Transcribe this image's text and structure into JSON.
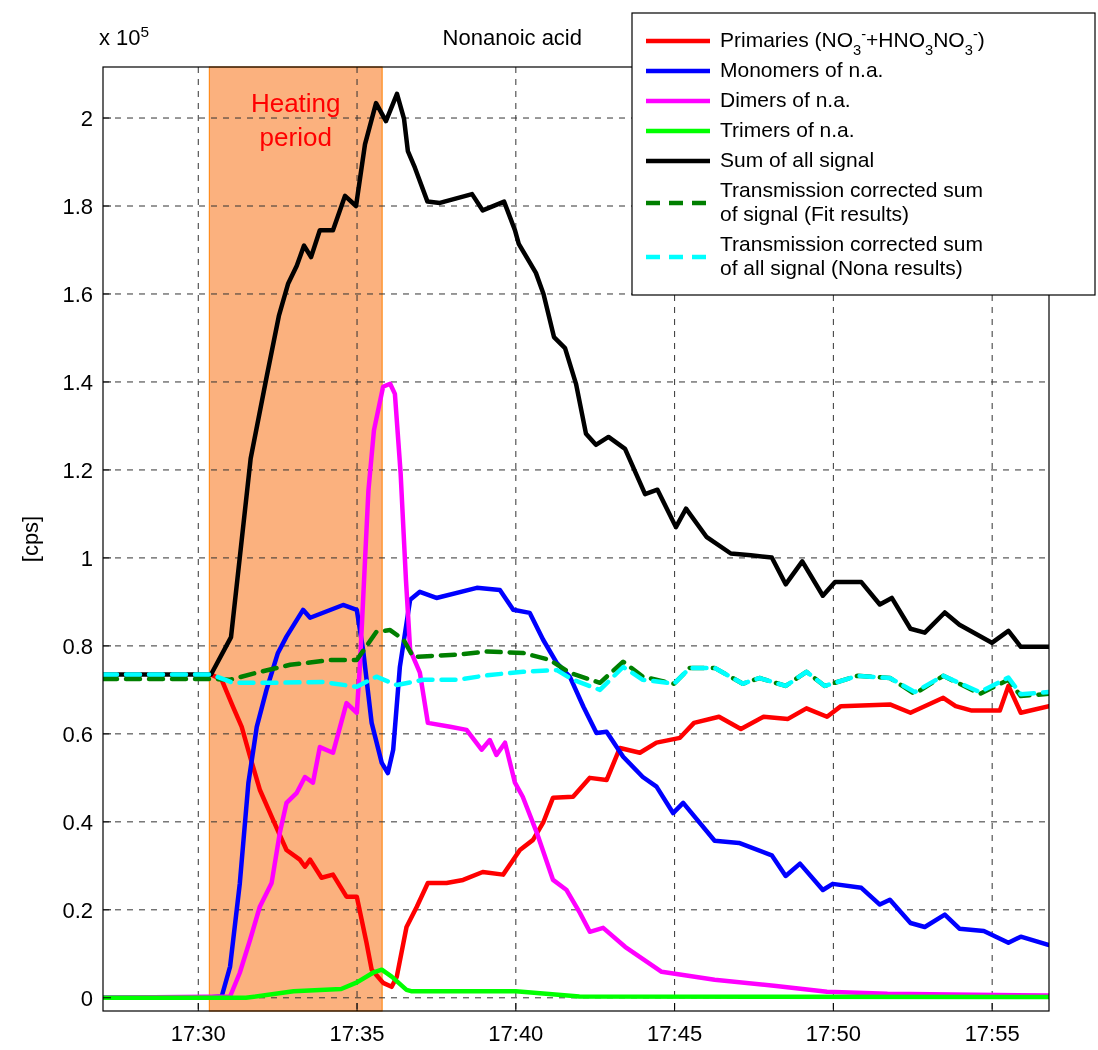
{
  "chart_data": {
    "type": "line",
    "title": "Nonanoic acid",
    "ylabel": "[cps]",
    "annotations": [
      "x 10$^{5}$"
    ],
    "xlim": [
      17.45,
      17.9465
    ],
    "ylim": [
      -0.03,
      2.116
    ],
    "xticks": [
      {
        "value": 17.5,
        "label": "17:30"
      },
      {
        "value": 17.58333,
        "label": "17:35"
      },
      {
        "value": 17.66667,
        "label": "17:40"
      },
      {
        "value": 17.75,
        "label": "17:45"
      },
      {
        "value": 17.83333,
        "label": "17:50"
      },
      {
        "value": 17.91667,
        "label": "17:55"
      }
    ],
    "yticks": [
      0,
      0.2,
      0.4,
      0.6,
      0.8,
      1,
      1.2,
      1.4,
      1.6,
      1.8,
      2
    ],
    "grid": true,
    "legend": "top right",
    "bands": [
      {
        "axis": "x",
        "from": 17.5058,
        "to": 17.5965,
        "label": "Heating period",
        "color": "#fbb17e"
      }
    ],
    "series": [
      {
        "name": "Primaries (NO$_{3}$$^{-}$+HNO$_{3}$NO$_{3}$$^{-}$)",
        "color": "#ff0000",
        "line_style": "solid",
        "x": [
          17.5067,
          17.5123,
          17.5183,
          17.5228,
          17.5272,
          17.5323,
          17.5392,
          17.5463,
          17.5533,
          17.556,
          17.5587,
          17.5647,
          17.5707,
          17.5778,
          17.5832,
          17.5883,
          17.591,
          17.597,
          17.6015,
          17.6042,
          17.6093,
          17.6147,
          17.6205,
          17.6303,
          17.639,
          17.6493,
          17.66,
          17.6688,
          17.6757,
          17.681,
          17.6862,
          17.6967,
          17.7055,
          17.7143,
          17.7213,
          17.7318,
          17.7405,
          17.7528,
          17.7602,
          17.7733,
          17.7848,
          17.7967,
          17.8095,
          17.8192,
          17.83,
          17.8373,
          17.863,
          17.8738,
          17.891,
          17.8975,
          17.906,
          17.9207,
          17.9252,
          17.9317,
          17.9465
        ],
        "values": [
          0.735,
          0.723,
          0.661,
          0.616,
          0.548,
          0.473,
          0.405,
          0.336,
          0.314,
          0.298,
          0.314,
          0.273,
          0.28,
          0.23,
          0.23,
          0.125,
          0.064,
          0.034,
          0.025,
          0.048,
          0.161,
          0.207,
          0.261,
          0.261,
          0.268,
          0.286,
          0.28,
          0.336,
          0.359,
          0.398,
          0.455,
          0.457,
          0.5,
          0.495,
          0.568,
          0.557,
          0.58,
          0.591,
          0.625,
          0.639,
          0.611,
          0.639,
          0.634,
          0.658,
          0.639,
          0.663,
          0.667,
          0.648,
          0.682,
          0.663,
          0.653,
          0.653,
          0.709,
          0.648,
          0.663
        ]
      },
      {
        "name": "Monomers of n.a.",
        "color": "#0000ff",
        "line_style": "solid",
        "x": [
          17.45,
          17.5033,
          17.5123,
          17.5167,
          17.5218,
          17.5263,
          17.5307,
          17.5358,
          17.5418,
          17.5463,
          17.555,
          17.5587,
          17.576,
          17.5832,
          17.5865,
          17.591,
          17.5963,
          17.5995,
          17.6023,
          17.6058,
          17.6112,
          17.6163,
          17.625,
          17.6462,
          17.6583,
          17.6653,
          17.674,
          17.681,
          17.6882,
          17.695,
          17.7022,
          17.709,
          17.7143,
          17.723,
          17.7333,
          17.7405,
          17.7492,
          17.7545,
          17.771,
          17.7838,
          17.801,
          17.8083,
          17.8158,
          17.8278,
          17.833,
          17.848,
          17.8577,
          17.863,
          17.8738,
          17.8813,
          17.8918,
          17.8995,
          17.9123,
          17.9252,
          17.9317,
          17.9465
        ],
        "values": [
          0,
          0,
          0.003,
          0.071,
          0.26,
          0.488,
          0.616,
          0.7,
          0.784,
          0.821,
          0.882,
          0.864,
          0.893,
          0.882,
          0.791,
          0.625,
          0.534,
          0.511,
          0.564,
          0.752,
          0.905,
          0.923,
          0.909,
          0.932,
          0.927,
          0.882,
          0.875,
          0.814,
          0.761,
          0.73,
          0.661,
          0.602,
          0.605,
          0.548,
          0.502,
          0.48,
          0.42,
          0.443,
          0.357,
          0.352,
          0.324,
          0.277,
          0.305,
          0.245,
          0.259,
          0.25,
          0.212,
          0.223,
          0.17,
          0.161,
          0.189,
          0.157,
          0.152,
          0.125,
          0.139,
          0.12
        ]
      },
      {
        "name": "Dimers of n.a.",
        "color": "#ff00ff",
        "line_style": "solid",
        "x": [
          17.45,
          17.5167,
          17.5218,
          17.5272,
          17.5323,
          17.5385,
          17.5428,
          17.5463,
          17.5517,
          17.556,
          17.5602,
          17.5638,
          17.5707,
          17.5778,
          17.5832,
          17.5848,
          17.5893,
          17.5922,
          17.597,
          17.6007,
          17.6032,
          17.6062,
          17.609,
          17.6112,
          17.6163,
          17.6205,
          17.6322,
          17.6408,
          17.6487,
          17.653,
          17.6565,
          17.661,
          17.6662,
          17.6703,
          17.6777,
          17.6862,
          17.6933,
          17.7003,
          17.7055,
          17.7125,
          17.724,
          17.7432,
          17.771,
          17.8033,
          17.83,
          17.8617,
          17.9465
        ],
        "values": [
          0,
          0.003,
          0.057,
          0.132,
          0.207,
          0.261,
          0.375,
          0.443,
          0.466,
          0.502,
          0.489,
          0.57,
          0.557,
          0.67,
          0.648,
          0.752,
          1.153,
          1.29,
          1.389,
          1.396,
          1.373,
          1.193,
          0.95,
          0.791,
          0.739,
          0.625,
          0.616,
          0.609,
          0.564,
          0.586,
          0.552,
          0.58,
          0.489,
          0.457,
          0.375,
          0.268,
          0.245,
          0.193,
          0.15,
          0.159,
          0.116,
          0.059,
          0.041,
          0.027,
          0.014,
          0.009,
          0.005
        ]
      },
      {
        "name": "Trimers of n.a.",
        "color": "#00ff00",
        "line_style": "solid",
        "x": [
          17.45,
          17.525,
          17.55,
          17.575,
          17.5833,
          17.5917,
          17.5963,
          17.6015,
          17.6093,
          17.6117,
          17.6667,
          17.7,
          17.9465
        ],
        "values": [
          0,
          0,
          0.015,
          0.02,
          0.035,
          0.057,
          0.064,
          0.048,
          0.018,
          0.015,
          0.015,
          0.003,
          0.002
        ]
      },
      {
        "name": "Sum of all signal",
        "color": "#000000",
        "line_style": "solid",
        "x": [
          17.45,
          17.5067,
          17.5172,
          17.5275,
          17.536,
          17.5423,
          17.5472,
          17.5517,
          17.5555,
          17.5592,
          17.5638,
          17.5707,
          17.577,
          17.5828,
          17.5875,
          17.5933,
          17.5985,
          17.6043,
          17.608,
          17.61,
          17.6137,
          17.6203,
          17.6268,
          17.6437,
          17.6493,
          17.6605,
          17.6662,
          17.6682,
          17.6772,
          17.6812,
          17.6867,
          17.6925,
          17.6983,
          17.7035,
          17.7087,
          17.7153,
          17.724,
          17.7345,
          17.741,
          17.7507,
          17.756,
          17.7667,
          17.7795,
          17.79,
          17.801,
          17.8083,
          17.817,
          17.8278,
          17.8342,
          17.848,
          17.8577,
          17.864,
          17.8738,
          17.8813,
          17.8918,
          17.8995,
          17.9165,
          17.9252,
          17.9317,
          17.9465
        ],
        "values": [
          0.735,
          0.735,
          0.82,
          1.226,
          1.414,
          1.55,
          1.624,
          1.664,
          1.71,
          1.684,
          1.745,
          1.745,
          1.823,
          1.8,
          1.94,
          2.034,
          1.993,
          2.055,
          1.998,
          1.925,
          1.887,
          1.81,
          1.807,
          1.827,
          1.79,
          1.81,
          1.745,
          1.714,
          1.648,
          1.6,
          1.502,
          1.477,
          1.395,
          1.282,
          1.257,
          1.275,
          1.248,
          1.145,
          1.155,
          1.07,
          1.112,
          1.048,
          1.01,
          1.006,
          1.001,
          0.94,
          0.992,
          0.914,
          0.945,
          0.945,
          0.894,
          0.909,
          0.839,
          0.83,
          0.876,
          0.848,
          0.807,
          0.834,
          0.798,
          0.798
        ]
      },
      {
        "name": "Transmission corrected sum of signal (Fit results)",
        "color": "#007f00",
        "line_style": "dashed",
        "x": [
          17.45,
          17.5067,
          17.5167,
          17.5307,
          17.5482,
          17.5692,
          17.5832,
          17.5935,
          17.6007,
          17.6077,
          17.6128,
          17.6357,
          17.6513,
          17.6705,
          17.6845,
          17.695,
          17.7108,
          17.723,
          17.7333,
          17.7497,
          17.758,
          17.771,
          17.7858,
          17.7945,
          17.8083,
          17.8192,
          17.8288,
          17.846,
          17.863,
          17.876,
          17.891,
          17.9102,
          17.9252,
          17.9317,
          17.9465
        ],
        "values": [
          0.725,
          0.725,
          0.723,
          0.739,
          0.757,
          0.768,
          0.768,
          0.832,
          0.836,
          0.814,
          0.775,
          0.78,
          0.787,
          0.784,
          0.768,
          0.739,
          0.716,
          0.764,
          0.73,
          0.714,
          0.75,
          0.75,
          0.714,
          0.727,
          0.709,
          0.741,
          0.709,
          0.732,
          0.727,
          0.691,
          0.732,
          0.691,
          0.723,
          0.686,
          0.691
        ]
      },
      {
        "name": "Transmission corrected sum of all signal (Nona results)",
        "color": "#00ffff",
        "line_style": "dashed",
        "x": [
          17.45,
          17.5067,
          17.5183,
          17.5377,
          17.5655,
          17.5832,
          17.5935,
          17.6042,
          17.618,
          17.6357,
          17.653,
          17.6705,
          17.6882,
          17.6967,
          17.7108,
          17.723,
          17.7333,
          17.7497,
          17.758,
          17.771,
          17.7858,
          17.7945,
          17.8083,
          17.8192,
          17.8288,
          17.846,
          17.863,
          17.876,
          17.891,
          17.9102,
          17.9252,
          17.9317,
          17.9465
        ],
        "values": [
          0.735,
          0.735,
          0.716,
          0.716,
          0.718,
          0.707,
          0.73,
          0.711,
          0.723,
          0.723,
          0.734,
          0.741,
          0.745,
          0.723,
          0.7,
          0.752,
          0.723,
          0.714,
          0.75,
          0.75,
          0.714,
          0.727,
          0.709,
          0.741,
          0.709,
          0.732,
          0.727,
          0.695,
          0.732,
          0.695,
          0.728,
          0.69,
          0.695
        ]
      }
    ]
  }
}
